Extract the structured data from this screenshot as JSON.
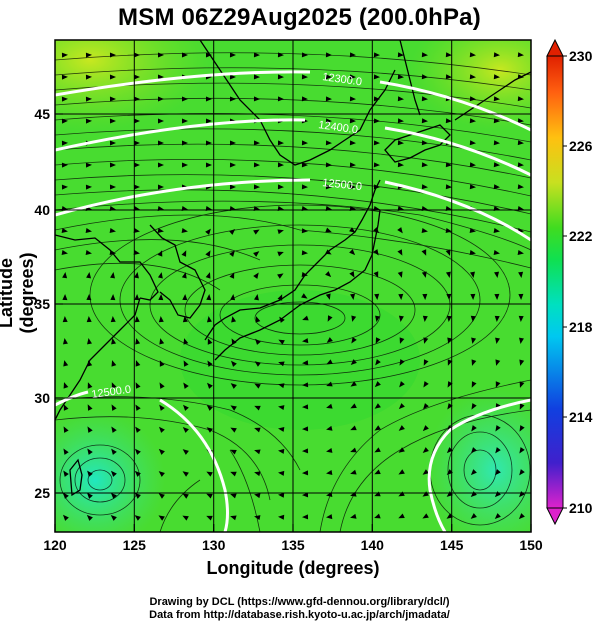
{
  "title": "MSM 06Z29Aug2025 (200.0hPa)",
  "axes": {
    "xlabel": "Longitude (degrees)",
    "ylabel": "Latitude  (degrees)",
    "x_ticks": [
      "120",
      "125",
      "130",
      "135",
      "140",
      "145",
      "150"
    ],
    "y_ticks": [
      "25",
      "30",
      "35",
      "40",
      "45"
    ],
    "x_range": [
      120,
      150
    ],
    "y_range": [
      22.4,
      47.6
    ]
  },
  "colorbar": {
    "labels": [
      "230",
      "226",
      "222",
      "218",
      "214",
      "210"
    ],
    "range": [
      210,
      230
    ],
    "colors": [
      "#dd22cc",
      "#2233cc",
      "#00a0ff",
      "#00e0d0",
      "#10e060",
      "#30d820",
      "#88e020",
      "#d8e020",
      "#ffb010",
      "#ff5010",
      "#e02000"
    ]
  },
  "contour_labels": [
    "12300.0",
    "12400.0",
    "12500.0",
    "12500.0"
  ],
  "credits": {
    "line1": "Drawing by DCL (https://www.gfd-dennou.org/library/dcl/)",
    "line2": "Data from http://database.rish.kyoto-u.ac.jp/arch/jmadata/"
  }
}
